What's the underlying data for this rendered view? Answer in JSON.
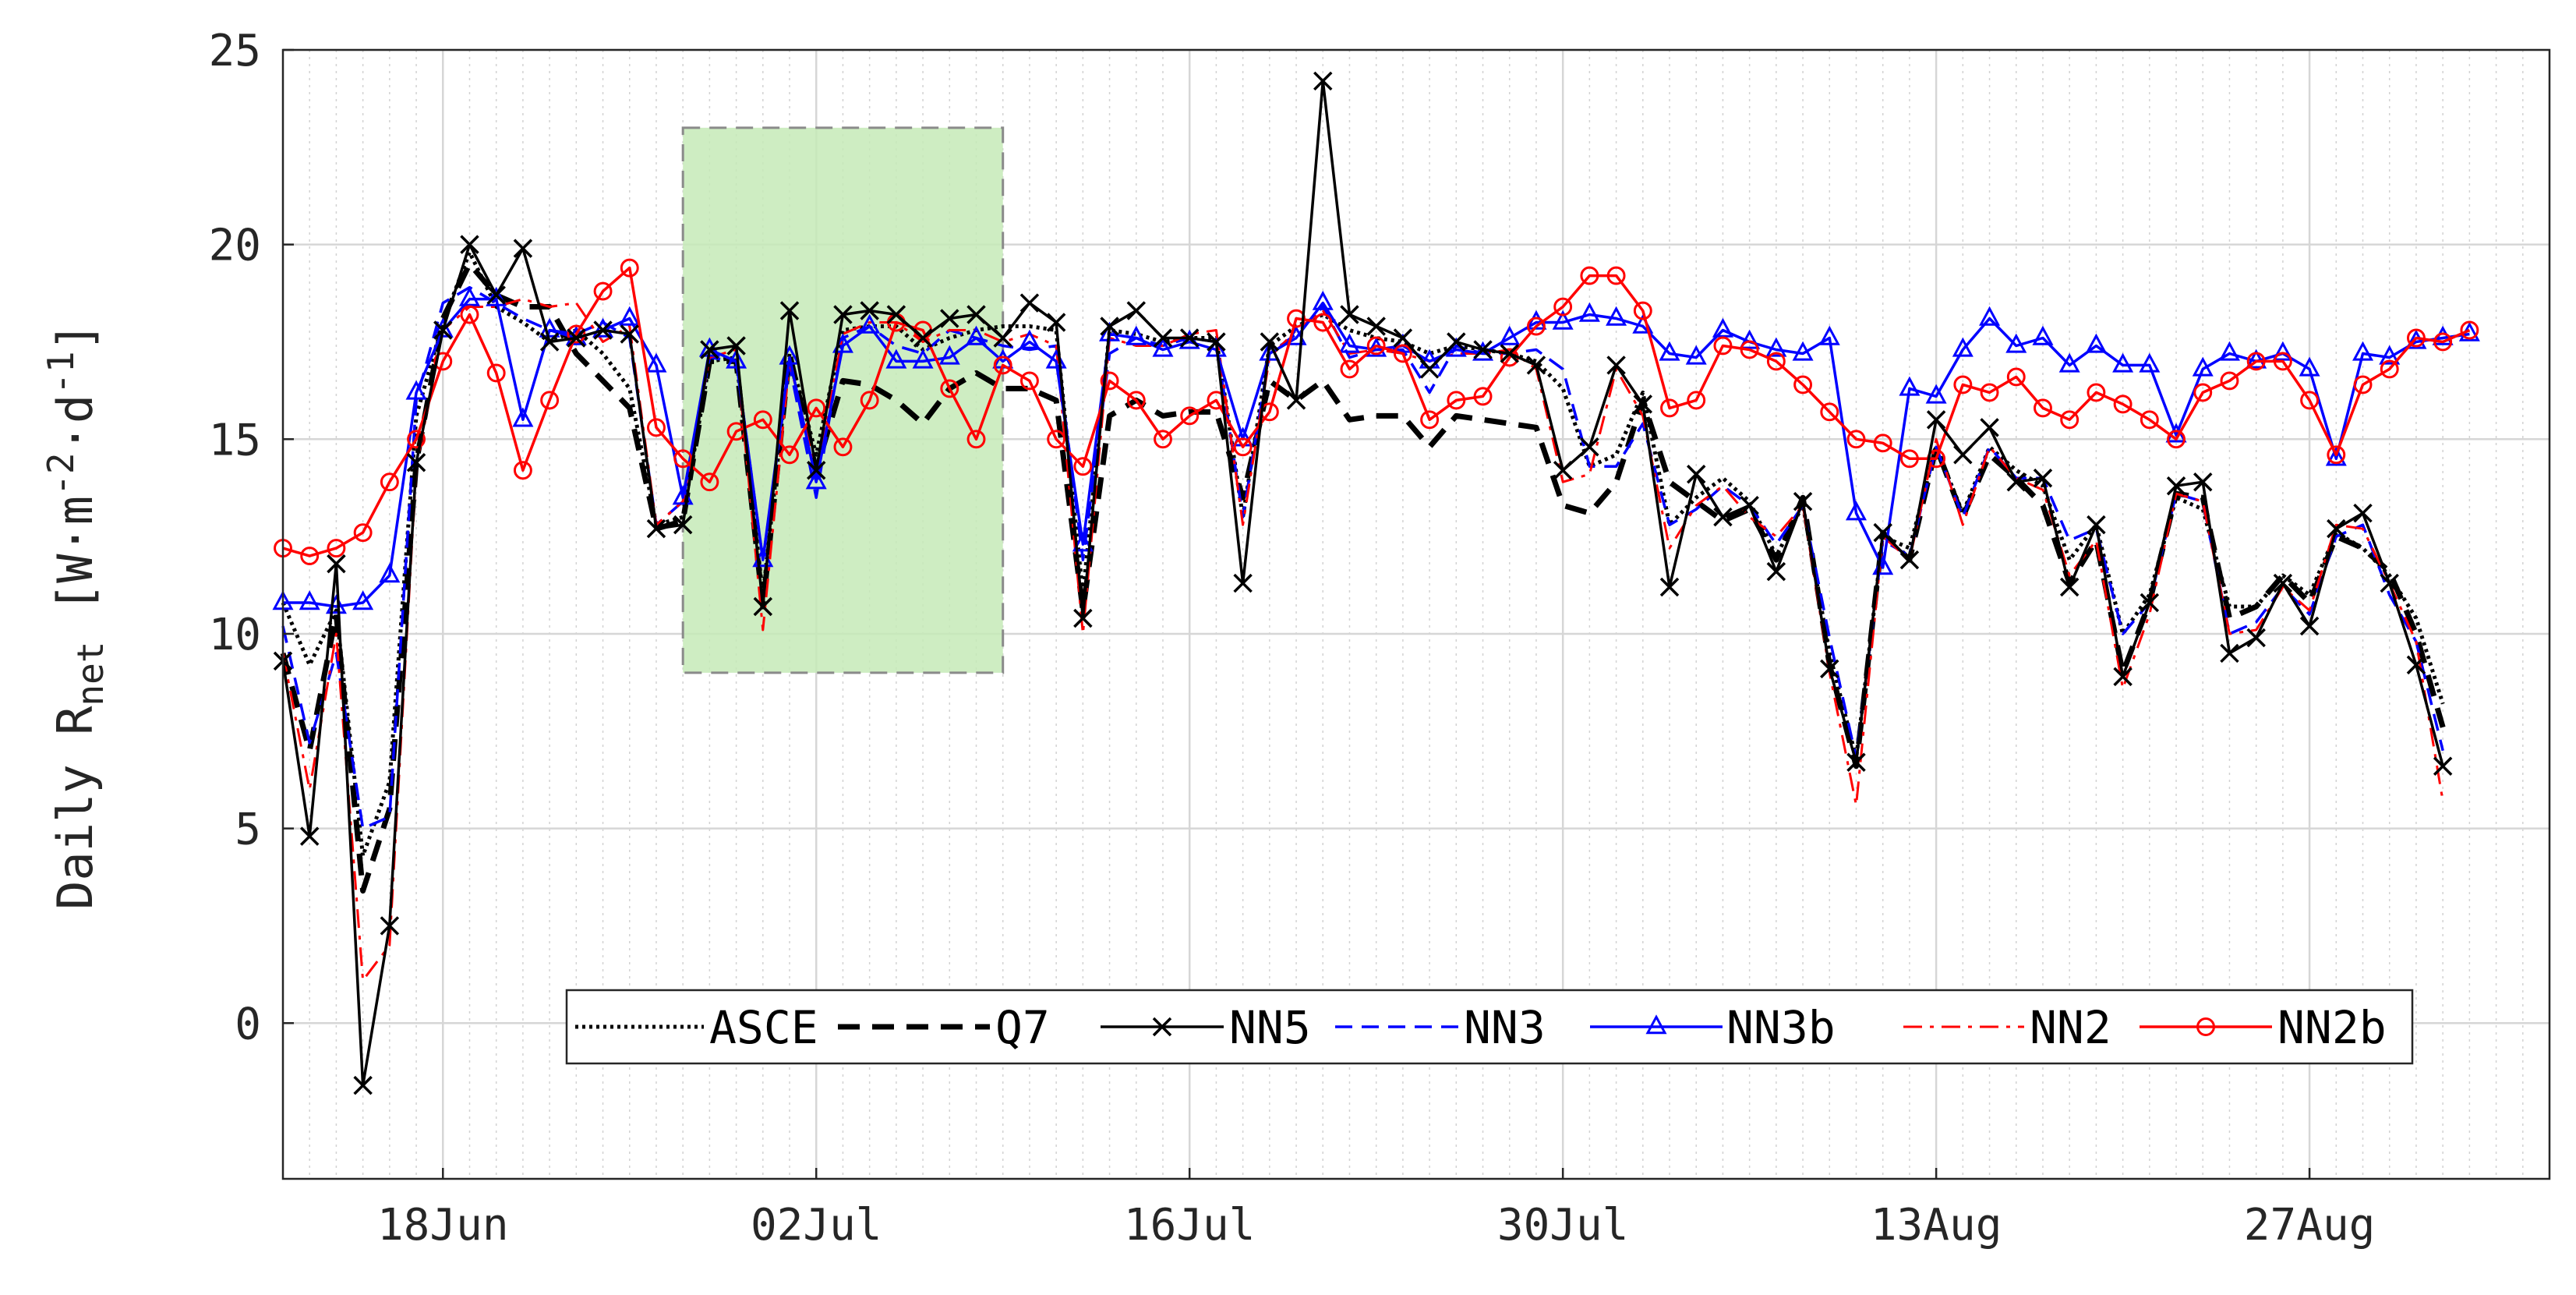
{
  "chart_data": {
    "type": "line",
    "title": "",
    "xlabel": "",
    "ylabel": {
      "prefix": "Daily R",
      "sub": "net",
      "unit_open": " [W·m",
      "sup1": "-2",
      "unit_mid": "·d",
      "sup2": "-1",
      "unit_close": "]"
    },
    "ylim": [
      -4,
      25
    ],
    "yticks": [
      0,
      5,
      10,
      15,
      20,
      25
    ],
    "xticks": [
      {
        "day": 6,
        "label": "18Jun"
      },
      {
        "day": 20,
        "label": "02Jul"
      },
      {
        "day": 34,
        "label": "16Jul"
      },
      {
        "day": 48,
        "label": "30Jul"
      },
      {
        "day": 62,
        "label": "13Aug"
      },
      {
        "day": 76,
        "label": "27Aug"
      }
    ],
    "x_start_day": 0,
    "x_end_day": 85,
    "grid": true,
    "minor_x_grid": true,
    "highlight_region": {
      "x_from_day": 15,
      "x_to_day": 27,
      "y_from": 9,
      "y_to": 23,
      "color": "#c6eab7"
    },
    "legend_position": "bottom-center",
    "series": [
      {
        "name": "ASCE",
        "color": "#000000",
        "dash": "dotted",
        "marker": "none",
        "values": [
          10.8,
          9.2,
          10.6,
          4.3,
          6.2,
          15.6,
          18.0,
          19.8,
          18.4,
          18.0,
          17.5,
          17.8,
          17.2,
          16.3,
          12.8,
          13.0,
          17.0,
          17.1,
          11.0,
          17.2,
          14.6,
          17.8,
          17.9,
          17.9,
          17.3,
          17.6,
          17.8,
          17.9,
          17.9,
          17.8,
          11.0,
          17.8,
          17.7,
          17.5,
          17.6,
          17.6,
          13.0,
          17.4,
          17.9,
          18.2,
          17.8,
          17.6,
          17.5,
          17.2,
          17.4,
          17.3,
          17.2,
          17.0,
          16.3,
          14.3,
          14.6,
          16.2,
          12.8,
          13.5,
          14.0,
          13.4,
          12.0,
          13.3,
          9.5,
          6.8,
          12.5,
          12.2,
          14.8,
          13.1,
          14.8,
          14.2,
          13.8,
          11.9,
          12.8,
          10.0,
          11.0,
          13.5,
          13.2,
          10.7,
          10.7,
          11.5,
          11.0,
          12.6,
          12.2,
          11.5,
          10.4,
          8.2
        ]
      },
      {
        "name": "Q7",
        "color": "#000000",
        "dash": "dashed-thick",
        "marker": "none",
        "values": [
          9.5,
          7.0,
          10.5,
          3.4,
          5.5,
          14.4,
          18.1,
          19.5,
          18.7,
          18.4,
          18.4,
          17.2,
          16.5,
          15.8,
          12.7,
          12.9,
          17.0,
          17.0,
          10.7,
          17.2,
          14.2,
          16.5,
          16.4,
          16.0,
          15.4,
          16.3,
          16.7,
          16.3,
          16.3,
          16.0,
          10.6,
          15.6,
          16.0,
          15.6,
          15.7,
          15.7,
          13.5,
          16.5,
          16.0,
          16.5,
          15.5,
          15.6,
          15.6,
          14.8,
          15.6,
          15.5,
          15.4,
          15.3,
          13.3,
          13.1,
          13.9,
          16.0,
          13.9,
          13.4,
          12.9,
          13.2,
          11.9,
          13.5,
          9.2,
          6.6,
          12.6,
          11.9,
          14.8,
          13.0,
          14.6,
          14.0,
          13.3,
          11.3,
          12.4,
          9.0,
          10.8,
          13.6,
          13.5,
          10.4,
          10.7,
          11.5,
          10.8,
          12.5,
          12.2,
          11.6,
          10.0,
          7.6
        ]
      },
      {
        "name": "NN5",
        "color": "#000000",
        "dash": "solid",
        "marker": "x",
        "values": [
          9.3,
          4.8,
          11.8,
          -1.6,
          2.5,
          14.4,
          17.8,
          20.0,
          18.7,
          19.9,
          17.5,
          17.6,
          17.8,
          17.7,
          12.7,
          12.8,
          17.3,
          17.4,
          10.7,
          18.3,
          14.2,
          18.2,
          18.3,
          18.2,
          17.6,
          18.1,
          18.2,
          17.6,
          18.5,
          18.0,
          10.4,
          17.9,
          18.3,
          17.6,
          17.6,
          17.5,
          11.3,
          17.5,
          16.0,
          24.2,
          18.2,
          17.9,
          17.6,
          16.8,
          17.5,
          17.3,
          17.2,
          16.9,
          14.2,
          14.8,
          16.9,
          15.9,
          11.2,
          14.1,
          13.0,
          13.3,
          11.6,
          13.4,
          9.1,
          6.7,
          12.6,
          11.9,
          15.5,
          14.6,
          15.3,
          13.9,
          14.0,
          11.2,
          12.8,
          8.9,
          10.8,
          13.8,
          13.9,
          9.5,
          9.9,
          11.3,
          10.2,
          12.7,
          13.1,
          11.3,
          9.2,
          6.6
        ]
      },
      {
        "name": "NN3",
        "color": "#0000ff",
        "dash": "dashed",
        "marker": "none",
        "values": [
          10.2,
          7.2,
          9.5,
          5.0,
          5.3,
          16.0,
          18.5,
          18.9,
          18.5,
          18.1,
          17.8,
          17.7,
          18.0,
          17.6,
          12.8,
          13.4,
          17.1,
          17.0,
          11.9,
          16.9,
          13.5,
          17.6,
          17.9,
          17.4,
          17.2,
          17.8,
          17.6,
          17.4,
          17.3,
          17.4,
          11.9,
          17.2,
          17.6,
          17.4,
          17.6,
          17.5,
          13.0,
          17.2,
          17.7,
          18.4,
          17.1,
          17.3,
          17.3,
          16.2,
          17.4,
          17.2,
          17.2,
          17.3,
          16.8,
          14.3,
          14.3,
          15.4,
          12.8,
          13.2,
          13.8,
          13.3,
          12.3,
          13.3,
          9.9,
          6.8,
          12.4,
          12.0,
          14.8,
          13.0,
          14.8,
          14.0,
          14.0,
          12.4,
          12.7,
          10.0,
          10.8,
          13.6,
          13.4,
          10.0,
          10.3,
          11.2,
          10.5,
          12.5,
          12.8,
          11.0,
          9.8,
          7.0
        ]
      },
      {
        "name": "NN3b",
        "color": "#0000ff",
        "dash": "solid",
        "marker": "triangle",
        "values": [
          10.8,
          10.8,
          10.7,
          10.8,
          11.5,
          16.2,
          17.8,
          18.6,
          18.6,
          15.5,
          17.8,
          17.6,
          17.8,
          18.1,
          16.9,
          13.5,
          17.3,
          17.0,
          11.9,
          17.1,
          13.9,
          17.4,
          17.9,
          17.0,
          17.0,
          17.1,
          17.6,
          17.0,
          17.5,
          17.0,
          12.3,
          17.7,
          17.6,
          17.3,
          17.5,
          17.3,
          15.0,
          17.2,
          17.6,
          18.5,
          17.4,
          17.3,
          17.4,
          17.0,
          17.3,
          17.2,
          17.6,
          18.0,
          18.0,
          18.2,
          18.1,
          17.9,
          17.2,
          17.1,
          17.8,
          17.5,
          17.3,
          17.2,
          17.6,
          13.1,
          11.7,
          16.3,
          16.1,
          17.3,
          18.1,
          17.4,
          17.6,
          16.9,
          17.4,
          16.9,
          16.9,
          15.1,
          16.8,
          17.2,
          17.0,
          17.2,
          16.8,
          14.5,
          17.2,
          17.1,
          17.5,
          17.6,
          17.7
        ]
      },
      {
        "name": "NN2",
        "color": "#ff0000",
        "dash": "dashdot",
        "marker": "none",
        "values": [
          9.5,
          6.0,
          10.0,
          1.1,
          2.0,
          14.3,
          17.8,
          18.4,
          18.4,
          18.6,
          18.4,
          18.5,
          17.5,
          17.9,
          12.8,
          13.4,
          17.1,
          17.3,
          10.1,
          17.0,
          14.1,
          17.7,
          18.0,
          18.0,
          17.5,
          17.8,
          17.8,
          17.5,
          17.7,
          17.4,
          10.0,
          17.6,
          17.4,
          17.4,
          17.7,
          17.8,
          12.8,
          17.1,
          17.8,
          18.3,
          17.2,
          17.3,
          17.2,
          17.0,
          17.2,
          17.2,
          17.3,
          16.8,
          13.9,
          14.1,
          16.8,
          15.6,
          12.2,
          13.3,
          13.8,
          13.0,
          12.5,
          13.3,
          9.0,
          5.6,
          12.5,
          11.9,
          15.0,
          12.8,
          14.8,
          14.0,
          13.7,
          11.5,
          12.4,
          8.6,
          10.5,
          13.6,
          13.4,
          10.0,
          10.1,
          11.2,
          10.6,
          12.8,
          12.7,
          11.3,
          9.8,
          5.7
        ]
      },
      {
        "name": "NN2b",
        "color": "#ff0000",
        "dash": "solid",
        "marker": "circle",
        "values": [
          12.2,
          12.0,
          12.2,
          12.6,
          13.9,
          15.0,
          17.0,
          18.2,
          16.7,
          14.2,
          16.0,
          17.7,
          18.8,
          19.4,
          15.3,
          14.5,
          13.9,
          15.2,
          15.5,
          14.6,
          15.8,
          14.8,
          16.0,
          18.0,
          17.8,
          16.3,
          15.0,
          16.9,
          16.5,
          15.0,
          14.3,
          16.5,
          16.0,
          15.0,
          15.6,
          16.0,
          14.8,
          15.7,
          18.1,
          18.0,
          16.8,
          17.4,
          17.2,
          15.5,
          16.0,
          16.1,
          17.1,
          17.9,
          18.4,
          19.2,
          19.2,
          18.3,
          15.8,
          16.0,
          17.4,
          17.3,
          17.0,
          16.4,
          15.7,
          15.0,
          14.9,
          14.5,
          14.5,
          16.4,
          16.2,
          16.6,
          15.8,
          15.5,
          16.2,
          15.9,
          15.5,
          15.0,
          16.2,
          16.5,
          17.0,
          17.0,
          16.0,
          14.6,
          16.4,
          16.8,
          17.6,
          17.5,
          17.8
        ]
      }
    ]
  }
}
